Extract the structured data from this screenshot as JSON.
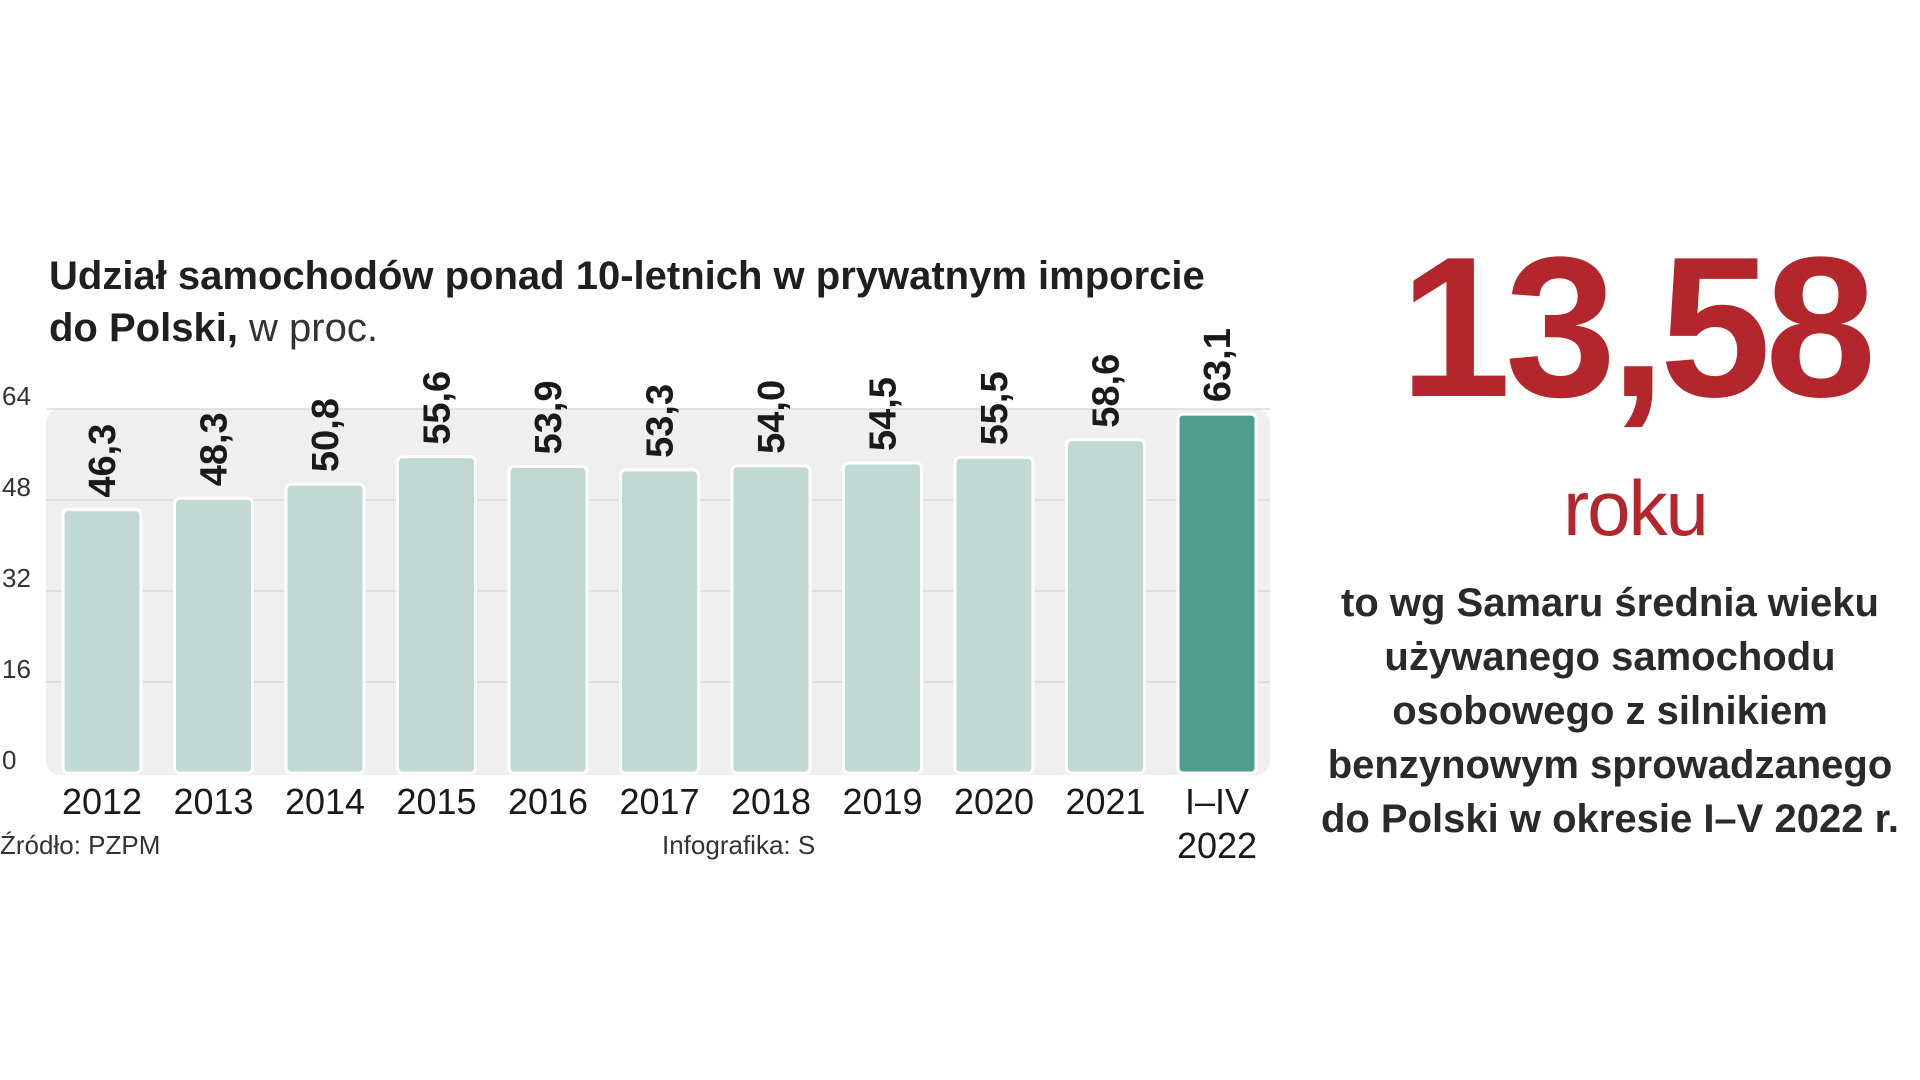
{
  "chart_data": {
    "type": "bar",
    "title": "Udział samochodów ponad 10-letnich w prywatnym imporcie do Polski,",
    "title_line1": "Udział samochodów ponad 10-letnich w prywatnym imporcie",
    "title_line2_bold": "do Polski,",
    "title_line2_light": " w proc.",
    "categories": [
      "2012",
      "2013",
      "2014",
      "2015",
      "2016",
      "2017",
      "2018",
      "2019",
      "2020",
      "2021",
      "I–IV|2022"
    ],
    "values": [
      46.3,
      48.3,
      50.8,
      55.6,
      53.9,
      53.3,
      54.0,
      54.5,
      55.5,
      58.6,
      63.1
    ],
    "value_labels": [
      "46,3",
      "48,3",
      "50,8",
      "55,6",
      "53,9",
      "53,3",
      "54,0",
      "54,5",
      "55,5",
      "58,6",
      "63,1"
    ],
    "highlight_index": 10,
    "ylim": [
      0,
      64
    ],
    "yticks": [
      0,
      16,
      32,
      48,
      64
    ],
    "grid": true,
    "colors": {
      "bar": "#c0dad3",
      "bar_highlight": "#4f9d8e",
      "panel": "#efefef",
      "grid": "#dcdcdc"
    }
  },
  "source": "Źródło: PZPM",
  "credit": "Infografika: S",
  "infobox": {
    "number": "13,58",
    "unit": "roku",
    "description": "to wg Samaru średnia wieku używanego samochodu osobowego z silnikiem benzynowym sprowadzanego do Polski w okresie I–V 2022 r.",
    "color": "#b3262b"
  }
}
